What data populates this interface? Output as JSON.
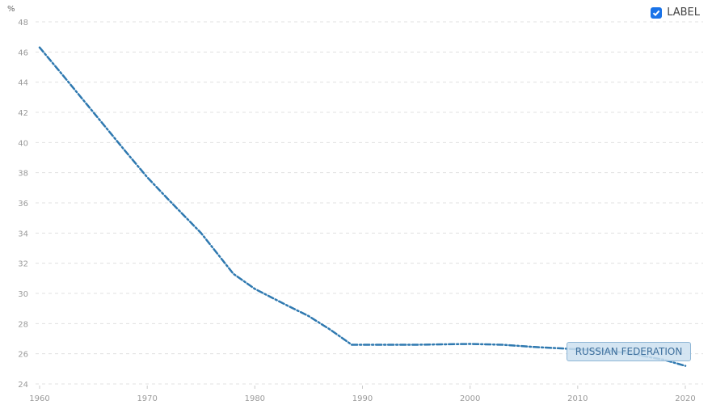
{
  "legend": {
    "label": "LABEL",
    "checked": true
  },
  "series_label": "RUSSIAN FEDERATION",
  "colors": {
    "series": "#2f79b0",
    "checkbox": "#1a73e8",
    "grid": "#e0e0e0"
  },
  "chart_data": {
    "type": "line",
    "title": "",
    "xlabel": "",
    "ylabel": "%",
    "ylim": [
      24,
      48
    ],
    "xlim": [
      1960,
      2020
    ],
    "yticks": [
      24,
      26,
      28,
      30,
      32,
      34,
      36,
      38,
      40,
      42,
      44,
      46,
      48
    ],
    "xticks": [
      1960,
      1970,
      1980,
      1990,
      2000,
      2010,
      2020
    ],
    "grid": true,
    "legend_position": "top-right",
    "series": [
      {
        "name": "RUSSIAN FEDERATION",
        "x": [
          1960,
          1962,
          1965,
          1968,
          1970,
          1972,
          1975,
          1978,
          1980,
          1983,
          1985,
          1987,
          1989,
          1992,
          1995,
          2000,
          2003,
          2006,
          2010,
          2013,
          2015,
          2018,
          2020
        ],
        "values": [
          46.3,
          44.6,
          42.0,
          39.4,
          37.7,
          36.2,
          34.0,
          31.3,
          30.3,
          29.2,
          28.5,
          27.6,
          26.6,
          26.6,
          26.6,
          26.65,
          26.6,
          26.45,
          26.3,
          26.2,
          26.0,
          25.6,
          25.2
        ]
      }
    ]
  }
}
